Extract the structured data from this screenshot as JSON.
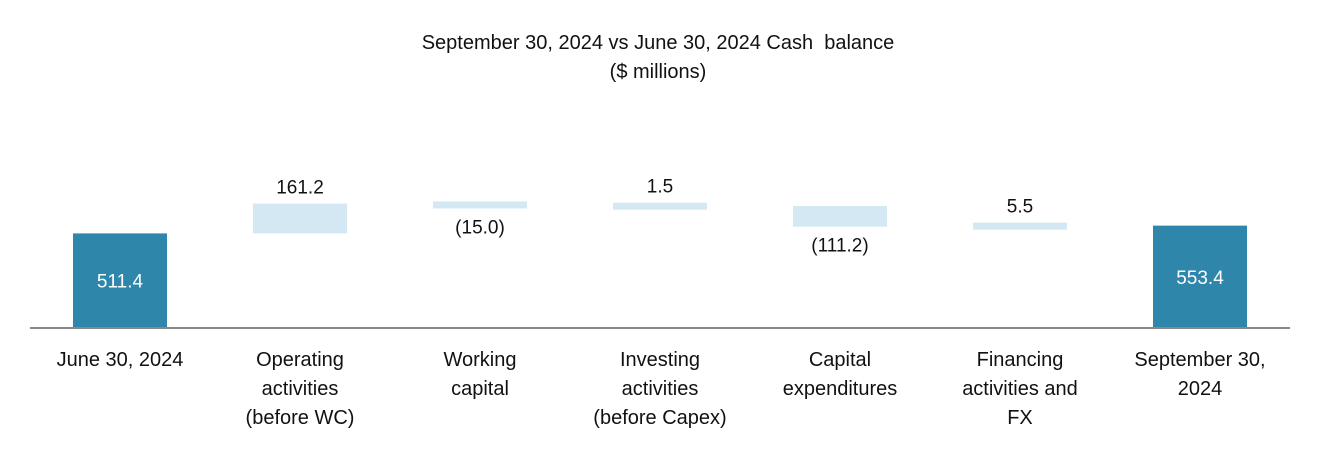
{
  "chart_data": {
    "type": "bar",
    "subtype": "waterfall",
    "title": "September 30, 2024 vs June 30, 2024 Cash  balance",
    "subtitle": "($ millions)",
    "categories": [
      [
        "June 30, 2024"
      ],
      [
        "Operating",
        "activities",
        "(before WC)"
      ],
      [
        "Working",
        "capital"
      ],
      [
        "Investing",
        "activities",
        "(before Capex)"
      ],
      [
        "Capital",
        "expenditures"
      ],
      [
        "Financing",
        "activities and",
        "FX"
      ],
      [
        "September 30,",
        "2024"
      ]
    ],
    "values": [
      511.4,
      161.2,
      -15.0,
      1.5,
      -111.2,
      5.5,
      553.4
    ],
    "kinds": [
      "total",
      "change",
      "change",
      "change",
      "change",
      "change",
      "total"
    ],
    "data_labels": [
      "511.4",
      "161.2",
      "(15.0)",
      "1.5",
      "(111.2)",
      "5.5",
      "553.4"
    ],
    "colors": {
      "total": "#2e86ab",
      "change": "#d3e8f3",
      "axis": "#888888",
      "total_label": "#ffffff",
      "text": "#111111"
    },
    "xlabel": "",
    "ylabel": "",
    "grid": false,
    "legend": "none"
  }
}
